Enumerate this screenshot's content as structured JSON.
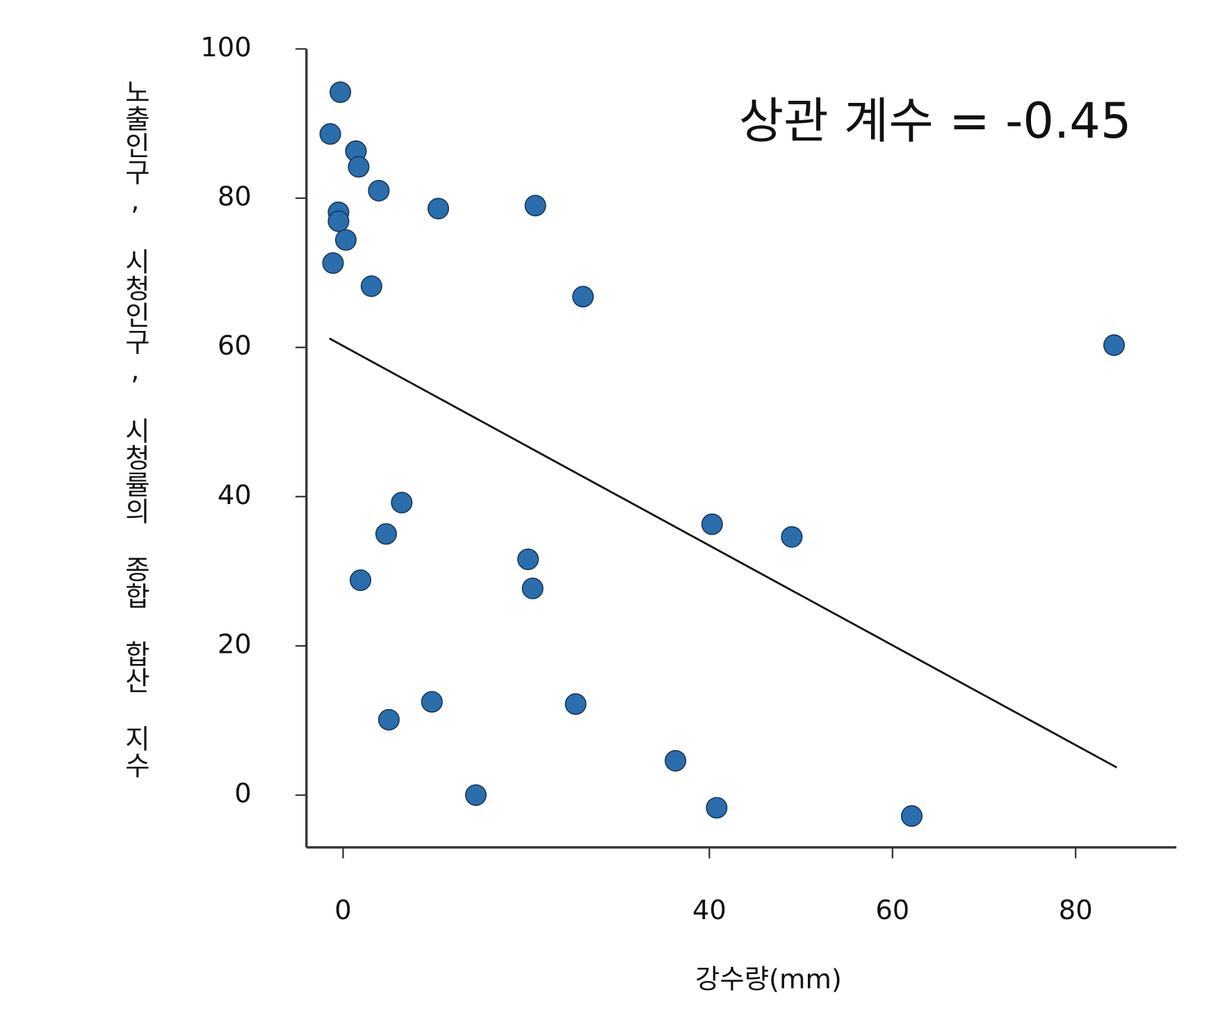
{
  "chart_data": {
    "type": "scatter",
    "annotation": "상관 계수 = -0.45",
    "x_label": "강수량(mm)",
    "y_label": "노출인구, 시청인구, 시청률의 종합 합산 지수",
    "x": [
      -0.3,
      -1.4,
      1.4,
      1.7,
      3.9,
      10.4,
      21.0,
      -0.5,
      -0.5,
      0.3,
      -1.1,
      3.1,
      26.2,
      84.2,
      6.4,
      4.7,
      40.3,
      49.0,
      20.2,
      20.7,
      1.9,
      9.7,
      25.4,
      5.0,
      36.3,
      14.5,
      40.8,
      62.1
    ],
    "y": [
      94.2,
      88.6,
      86.3,
      84.2,
      81.0,
      78.6,
      79.0,
      78.1,
      76.9,
      74.4,
      71.3,
      68.2,
      66.8,
      60.3,
      39.2,
      35.0,
      36.3,
      34.6,
      31.6,
      27.7,
      28.8,
      12.5,
      12.2,
      10.1,
      4.6,
      0,
      -1.7,
      -2.8
    ],
    "color": "#2a6ead",
    "trendline": {
      "x": [
        -1.5,
        84.5
      ],
      "y": [
        61.2,
        3.7
      ]
    },
    "xlim": [
      -4,
      91
    ],
    "ylim": [
      -7,
      100
    ],
    "xticks": [
      0,
      40,
      60,
      80
    ],
    "yticks": [
      0,
      20,
      40,
      60,
      80,
      100
    ]
  }
}
